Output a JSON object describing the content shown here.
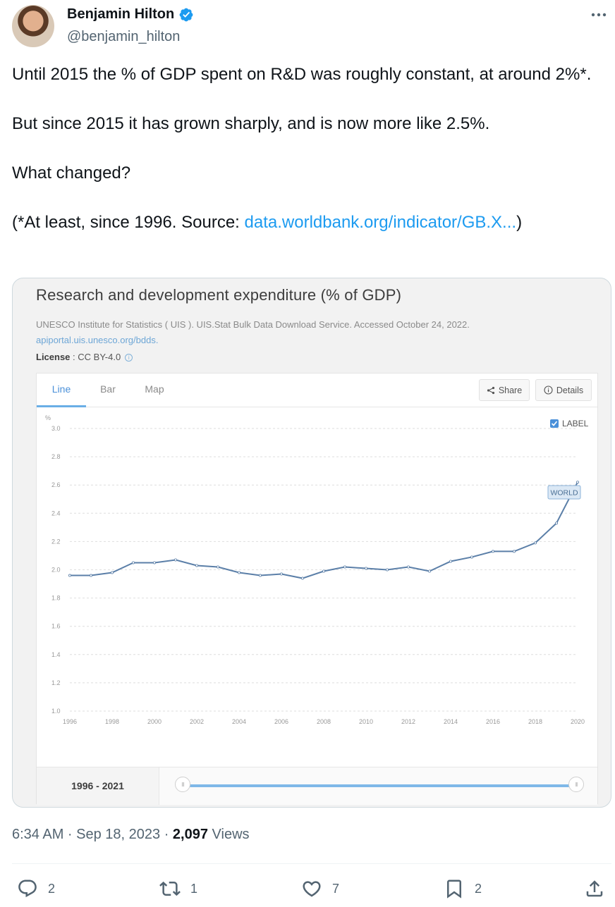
{
  "author": {
    "name": "Benjamin Hilton",
    "handle": "@benjamin_hilton"
  },
  "tweet": {
    "line1": "Until 2015 the % of GDP spent on R&D was roughly constant, at around 2%*.",
    "line2": "But since 2015 it has grown sharply, and is now more like 2.5%.",
    "line3": "What changed?",
    "line4_prefix": "(*At least, since 1996. Source: ",
    "line4_link": "data.worldbank.org/indicator/GB.X...",
    "line4_suffix": ")"
  },
  "card": {
    "title": "Research and development expenditure (% of GDP)",
    "source": "UNESCO Institute for Statistics ( UIS ). UIS.Stat Bulk Data Download Service. Accessed October 24, 2022.",
    "api_link": "apiportal.uis.unesco.org/bdds.",
    "license_label": "License",
    "license_value": " : CC BY-4.0",
    "tabs": [
      "Line",
      "Bar",
      "Map"
    ],
    "share_label": "Share",
    "details_label": "Details",
    "label_toggle": "LABEL",
    "range_label": "1996 - 2021"
  },
  "chart_data": {
    "type": "line",
    "ylabel": "%",
    "ylim": [
      1.0,
      3.0
    ],
    "yticks": [
      "3.0",
      "2.8",
      "2.6",
      "2.4",
      "2.2",
      "2.0",
      "1.8",
      "1.6",
      "1.4",
      "1.2",
      "1.0"
    ],
    "xticks": [
      "1996",
      "1998",
      "2000",
      "2002",
      "2004",
      "2006",
      "2008",
      "2010",
      "2012",
      "2014",
      "2016",
      "2018",
      "2020"
    ],
    "grid": true,
    "series": [
      {
        "name": "WORLD",
        "x": [
          1996,
          1997,
          1998,
          1999,
          2000,
          2001,
          2002,
          2003,
          2004,
          2005,
          2006,
          2007,
          2008,
          2009,
          2010,
          2011,
          2012,
          2013,
          2014,
          2015,
          2016,
          2017,
          2018,
          2019,
          2020
        ],
        "values": [
          1.96,
          1.96,
          1.98,
          2.05,
          2.05,
          2.07,
          2.03,
          2.02,
          1.98,
          1.96,
          1.97,
          1.94,
          1.99,
          2.02,
          2.01,
          2.0,
          2.02,
          1.99,
          2.06,
          2.09,
          2.13,
          2.13,
          2.19,
          2.33,
          2.62
        ]
      }
    ],
    "line_color": "#5b7fa8"
  },
  "footer": {
    "time": "6:34 AM · Sep 18, 2023 · ",
    "views_count": "2,097",
    "views_label": " Views",
    "replies": "2",
    "retweets": "1",
    "likes": "7",
    "bookmarks": "2"
  }
}
